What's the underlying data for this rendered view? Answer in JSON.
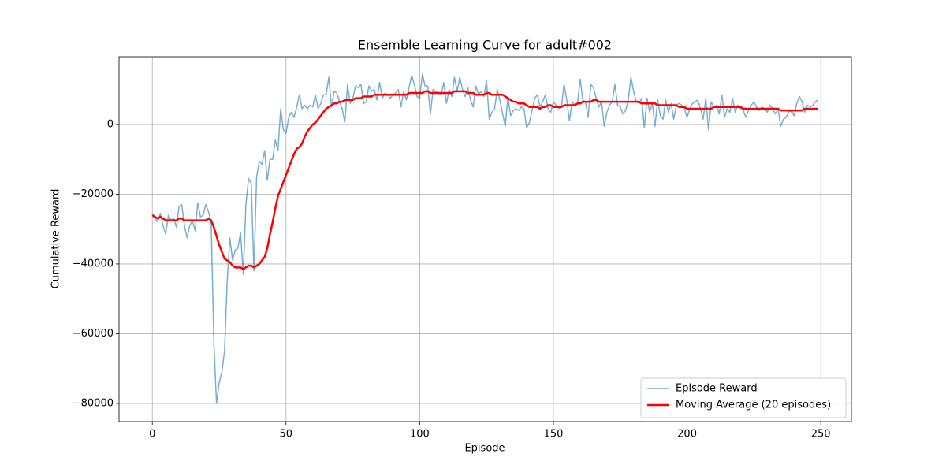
{
  "chart_data": {
    "type": "line",
    "title": "Ensemble Learning Curve for adult#002",
    "xlabel": "Episode",
    "ylabel": "Cumulative Reward",
    "x": [
      0,
      1,
      2,
      3,
      4,
      5,
      6,
      7,
      8,
      9,
      10,
      11,
      12,
      13,
      14,
      15,
      16,
      17,
      18,
      19,
      20,
      21,
      22,
      23,
      24,
      25,
      26,
      27,
      28,
      29,
      30,
      31,
      32,
      33,
      34,
      35,
      36,
      37,
      38,
      39,
      40,
      41,
      42,
      43,
      44,
      45,
      46,
      47,
      48,
      49,
      50,
      51,
      52,
      53,
      54,
      55,
      56,
      57,
      58,
      59,
      60,
      61,
      62,
      63,
      64,
      65,
      66,
      67,
      68,
      69,
      70,
      71,
      72,
      73,
      74,
      75,
      76,
      77,
      78,
      79,
      80,
      81,
      82,
      83,
      84,
      85,
      86,
      87,
      88,
      89,
      90,
      91,
      92,
      93,
      94,
      95,
      96,
      97,
      98,
      99,
      100,
      101,
      102,
      103,
      104,
      105,
      106,
      107,
      108,
      109,
      110,
      111,
      112,
      113,
      114,
      115,
      116,
      117,
      118,
      119,
      120,
      121,
      122,
      123,
      124,
      125,
      126,
      127,
      128,
      129,
      130,
      131,
      132,
      133,
      134,
      135,
      136,
      137,
      138,
      139,
      140,
      141,
      142,
      143,
      144,
      145,
      146,
      147,
      148,
      149,
      150,
      151,
      152,
      153,
      154,
      155,
      156,
      157,
      158,
      159,
      160,
      161,
      162,
      163,
      164,
      165,
      166,
      167,
      168,
      169,
      170,
      171,
      172,
      173,
      174,
      175,
      176,
      177,
      178,
      179,
      180,
      181,
      182,
      183,
      184,
      185,
      186,
      187,
      188,
      189,
      190,
      191,
      192,
      193,
      194,
      195,
      196,
      197,
      198,
      199,
      200,
      201,
      202,
      203,
      204,
      205,
      206,
      207,
      208,
      209,
      210,
      211,
      212,
      213,
      214,
      215,
      216,
      217,
      218,
      219,
      220,
      221,
      222,
      223,
      224,
      225,
      226,
      227,
      228,
      229,
      230,
      231,
      232,
      233,
      234,
      235,
      236,
      237,
      238,
      239,
      240,
      241,
      242,
      243,
      244,
      245,
      246,
      247,
      248,
      249
    ],
    "series": [
      {
        "name": "Episode Reward",
        "color": "#1f77b4",
        "opacity": 0.6,
        "line_width": 1.5,
        "values": [
          -26000,
          -27000,
          -28000,
          -25500,
          -29000,
          -31500,
          -26000,
          -27500,
          -27000,
          -29500,
          -23500,
          -23000,
          -29000,
          -32500,
          -29000,
          -27500,
          -30500,
          -22500,
          -26500,
          -26000,
          -23000,
          -25000,
          -28000,
          -62000,
          -80000,
          -74000,
          -71000,
          -65000,
          -45000,
          -32500,
          -39000,
          -36000,
          -35500,
          -31000,
          -43000,
          -23000,
          -15500,
          -17000,
          -42000,
          -15000,
          -10500,
          -11500,
          -7500,
          -16000,
          -10000,
          -10000,
          -4500,
          -7500,
          4500,
          -1500,
          -2500,
          2000,
          3500,
          2000,
          5000,
          8500,
          4500,
          5500,
          4500,
          5500,
          5000,
          8500,
          4500,
          6000,
          8500,
          8500,
          13500,
          5000,
          9500,
          9000,
          6500,
          4500,
          500,
          11500,
          6000,
          7500,
          11000,
          10500,
          11500,
          6000,
          6500,
          11000,
          9500,
          10000,
          7000,
          12000,
          7500,
          9000,
          8500,
          7500,
          8500,
          9000,
          10000,
          5000,
          9500,
          7000,
          10500,
          14000,
          11500,
          8000,
          7500,
          14500,
          11000,
          11000,
          3000,
          10000,
          9500,
          9000,
          8500,
          12000,
          6000,
          10000,
          8000,
          13500,
          9500,
          13500,
          10000,
          8000,
          10500,
          7000,
          5000,
          11000,
          8500,
          9500,
          8000,
          12500,
          1500,
          3500,
          4500,
          10000,
          7000,
          3000,
          -500,
          8000,
          2500,
          4000,
          4500,
          4000,
          5000,
          4500,
          -1000,
          500,
          4000,
          7500,
          8500,
          5000,
          6500,
          8500,
          4500,
          3500,
          6500,
          5500,
          4500,
          5000,
          11500,
          7000,
          1000,
          6500,
          5500,
          6000,
          13000,
          7000,
          6500,
          2000,
          11500,
          10500,
          7500,
          5000,
          6500,
          -500,
          3500,
          5500,
          6500,
          11500,
          5500,
          5000,
          3000,
          4000,
          7000,
          13500,
          9500,
          6500,
          6000,
          7500,
          -1000,
          7500,
          3500,
          6000,
          -500,
          7000,
          2500,
          1500,
          7000,
          3500,
          6000,
          1500,
          5500,
          6000,
          5500,
          4500,
          2000,
          4500,
          6000,
          6500,
          7000,
          4500,
          1500,
          7500,
          -1500,
          6500,
          5000,
          5500,
          3000,
          8500,
          2000,
          4500,
          3500,
          7500,
          3500,
          5500,
          4500,
          4000,
          2000,
          4000,
          5500,
          6500,
          5000,
          4000,
          5000,
          4500,
          3500,
          5500,
          4500,
          3000,
          4500,
          -500,
          1500,
          2000,
          3500,
          4000,
          2500,
          6000,
          8000,
          6500,
          3500,
          5500,
          5000,
          5500,
          6500,
          7000
        ]
      },
      {
        "name": "Moving Average (20 episodes)",
        "color": "#ff0000",
        "opacity": 1,
        "line_width": 2.5,
        "values": [
          -26000,
          -26500,
          -27000,
          -26500,
          -27000,
          -27500,
          -27500,
          -27500,
          -27500,
          -27500,
          -27000,
          -27000,
          -27500,
          -27500,
          -27500,
          -27500,
          -27500,
          -27500,
          -27500,
          -27500,
          -27500,
          -27000,
          -27500,
          -29500,
          -32000,
          -34500,
          -36500,
          -38500,
          -39000,
          -39500,
          -40500,
          -41000,
          -41000,
          -41000,
          -41500,
          -41000,
          -40500,
          -40500,
          -41000,
          -40500,
          -40000,
          -39000,
          -38000,
          -35500,
          -31500,
          -28000,
          -24000,
          -20500,
          -18500,
          -16500,
          -14500,
          -12500,
          -10500,
          -8500,
          -7000,
          -6500,
          -5500,
          -3500,
          -2000,
          -1000,
          0,
          500,
          1500,
          2500,
          3500,
          4500,
          5000,
          5500,
          6000,
          6000,
          6500,
          6500,
          7000,
          7000,
          7000,
          7000,
          7500,
          7500,
          7500,
          8000,
          8000,
          8000,
          8000,
          8500,
          8500,
          8500,
          8500,
          8500,
          8500,
          8500,
          8500,
          8500,
          8500,
          8500,
          8500,
          8500,
          9000,
          9000,
          9000,
          9000,
          9000,
          9000,
          9500,
          9500,
          9000,
          9000,
          9000,
          9000,
          9000,
          9000,
          9000,
          9000,
          9000,
          9500,
          9500,
          9500,
          9500,
          9500,
          9000,
          9000,
          9000,
          8500,
          8500,
          8500,
          8500,
          9000,
          9000,
          8500,
          8500,
          8500,
          8500,
          8500,
          8000,
          7500,
          7000,
          6500,
          6500,
          6000,
          6000,
          6000,
          5500,
          5000,
          5000,
          5000,
          5000,
          4500,
          5000,
          5000,
          5500,
          5500,
          5000,
          5000,
          5000,
          5000,
          5500,
          5500,
          5500,
          5500,
          5500,
          6000,
          6000,
          6500,
          6500,
          6500,
          6500,
          7000,
          7000,
          6500,
          6500,
          6500,
          6500,
          6500,
          6500,
          6500,
          6500,
          6500,
          6500,
          6500,
          6500,
          6500,
          6500,
          6500,
          6500,
          6000,
          6000,
          6000,
          6000,
          6000,
          6000,
          5500,
          5500,
          5500,
          5500,
          5500,
          5500,
          5500,
          5500,
          5000,
          5000,
          5000,
          4500,
          4500,
          4500,
          4500,
          4500,
          4500,
          4500,
          4500,
          4500,
          4500,
          5000,
          5000,
          5000,
          5000,
          5000,
          5000,
          5000,
          5000,
          5000,
          5000,
          5000,
          4500,
          4500,
          4500,
          4500,
          4500,
          4500,
          4500,
          4500,
          4500,
          4500,
          4500,
          4500,
          4500,
          4500,
          4000,
          4000,
          4000,
          4000,
          4000,
          4000,
          4000,
          4000,
          4000,
          4500,
          4500,
          4500,
          4500,
          4500,
          4500
        ]
      }
    ],
    "xlim": [
      -12.45,
      261.45
    ],
    "ylim": [
      -85200,
      19400
    ],
    "xticks": [
      0,
      50,
      100,
      150,
      200,
      250
    ],
    "yticks": [
      {
        "value": -80000,
        "label": "−80000"
      },
      {
        "value": -60000,
        "label": "−60000"
      },
      {
        "value": -40000,
        "label": "−40000"
      },
      {
        "value": -20000,
        "label": "−20000"
      },
      0
    ],
    "grid": true,
    "legend": "lower right"
  }
}
